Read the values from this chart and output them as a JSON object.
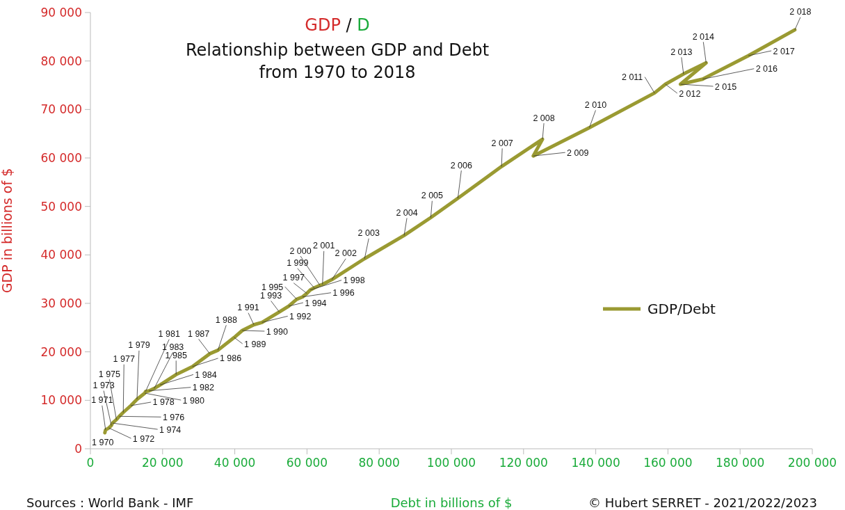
{
  "chart_data": {
    "type": "line",
    "title": "GDP / D",
    "subtitle": "Relationship between GDP and Debt from 1970 to 2018",
    "xlabel": "Debt in billions of $",
    "ylabel": "GDP in billions of $",
    "xlim": [
      0,
      200000
    ],
    "xticks": [
      {
        "value": 0,
        "label": "0"
      },
      {
        "value": 20000,
        "label": "20 000"
      },
      {
        "value": 40000,
        "label": "40 000"
      },
      {
        "value": 60000,
        "label": "60 000"
      },
      {
        "value": 80000,
        "label": "80 000"
      },
      {
        "value": 100000,
        "label": "100 000"
      },
      {
        "value": 120000,
        "label": "120 000"
      },
      {
        "value": 140000,
        "label": "140 000"
      },
      {
        "value": 160000,
        "label": "160 000"
      },
      {
        "value": 180000,
        "label": "180 000"
      },
      {
        "value": 200000,
        "label": "200 000"
      }
    ],
    "ylim": [
      0,
      90000
    ],
    "yticks": [
      {
        "value": 0,
        "label": "0"
      },
      {
        "value": 10000,
        "label": "10 000"
      },
      {
        "value": 20000,
        "label": "20 000"
      },
      {
        "value": 30000,
        "label": "30 000"
      },
      {
        "value": 40000,
        "label": "40 000"
      },
      {
        "value": 50000,
        "label": "50 000"
      },
      {
        "value": 60000,
        "label": "60 000"
      },
      {
        "value": 70000,
        "label": "70 000"
      },
      {
        "value": 80000,
        "label": "80 000"
      },
      {
        "value": 90000,
        "label": "90 000"
      }
    ],
    "grid": false,
    "legend": "right",
    "marker": "none",
    "line_style": "solid",
    "series": [
      {
        "name": "GDP/Debt",
        "color": "#9a9a32",
        "x": [
          4000,
          4200,
          5100,
          5800,
          6100,
          7200,
          8000,
          9100,
          11200,
          12900,
          15070,
          15270,
          16240,
          17660,
          19270,
          23740,
          28240,
          33070,
          35320,
          39830,
          42070,
          45280,
          47540,
          52330,
          54900,
          57160,
          58760,
          59960,
          60900,
          62000,
          63590,
          64300,
          66900,
          75960,
          86910,
          94290,
          101800,
          113900,
          125250,
          122690,
          138240,
          156290,
          159310,
          164320,
          170580,
          163480,
          169610,
          182300,
          195160
        ],
        "values": [
          3300,
          3900,
          4300,
          4800,
          5300,
          6000,
          6700,
          7500,
          8900,
          10200,
          11480,
          11810,
          11960,
          12440,
          13160,
          15310,
          16950,
          19610,
          20330,
          22960,
          24400,
          25590,
          26070,
          28220,
          29420,
          30850,
          31330,
          32050,
          32770,
          33200,
          33720,
          33900,
          34910,
          39220,
          44010,
          47690,
          51670,
          58230,
          63860,
          60410,
          66250,
          73400,
          75210,
          77320,
          79620,
          75210,
          76260,
          81100,
          86430
        ]
      }
    ],
    "annotations": [
      "Sources : World Bank - IMF",
      "© Hubert SERRET - 2021/2022/2023",
      {
        "text": "1 970",
        "x": 4000,
        "y": 3300
      },
      {
        "text": "1 971",
        "x": 4200,
        "y": 3900
      },
      {
        "text": "1 972",
        "x": 5100,
        "y": 4300
      },
      {
        "text": "1 973",
        "x": 5800,
        "y": 4800
      },
      {
        "text": "1 974",
        "x": 6100,
        "y": 5300
      },
      {
        "text": "1 975",
        "x": 7200,
        "y": 6000
      },
      {
        "text": "1 976",
        "x": 8000,
        "y": 6700
      },
      {
        "text": "1 977",
        "x": 9100,
        "y": 7500
      },
      {
        "text": "1 978",
        "x": 11200,
        "y": 8900
      },
      {
        "text": "1 979",
        "x": 12900,
        "y": 10200
      },
      {
        "text": "1 980",
        "x": 15070,
        "y": 11480
      },
      {
        "text": "1 981",
        "x": 15270,
        "y": 11810
      },
      {
        "text": "1 982",
        "x": 16240,
        "y": 11960
      },
      {
        "text": "1 983",
        "x": 17660,
        "y": 12440
      },
      {
        "text": "1 984",
        "x": 19270,
        "y": 13160
      },
      {
        "text": "1 985",
        "x": 23740,
        "y": 15310
      },
      {
        "text": "1 986",
        "x": 28240,
        "y": 16950
      },
      {
        "text": "1 987",
        "x": 33070,
        "y": 19610
      },
      {
        "text": "1 988",
        "x": 35320,
        "y": 20330
      },
      {
        "text": "1 989",
        "x": 39830,
        "y": 22960
      },
      {
        "text": "1 990",
        "x": 42070,
        "y": 24400
      },
      {
        "text": "1 991",
        "x": 45280,
        "y": 25590
      },
      {
        "text": "1 992",
        "x": 47540,
        "y": 26070
      },
      {
        "text": "1 993",
        "x": 52330,
        "y": 28220
      },
      {
        "text": "1 994",
        "x": 54900,
        "y": 29420
      },
      {
        "text": "1 995",
        "x": 57160,
        "y": 30850
      },
      {
        "text": "1 996",
        "x": 58760,
        "y": 31330
      },
      {
        "text": "1 997",
        "x": 59960,
        "y": 32050
      },
      {
        "text": "1 998",
        "x": 60900,
        "y": 32770
      },
      {
        "text": "1 999",
        "x": 62000,
        "y": 33200
      },
      {
        "text": "2 000",
        "x": 63590,
        "y": 33720
      },
      {
        "text": "2 001",
        "x": 64300,
        "y": 33900
      },
      {
        "text": "2 002",
        "x": 66900,
        "y": 34910
      },
      {
        "text": "2 003",
        "x": 75960,
        "y": 39220
      },
      {
        "text": "2 004",
        "x": 86910,
        "y": 44010
      },
      {
        "text": "2 005",
        "x": 94290,
        "y": 47690
      },
      {
        "text": "2 006",
        "x": 101800,
        "y": 51670
      },
      {
        "text": "2 007",
        "x": 113900,
        "y": 58230
      },
      {
        "text": "2 008",
        "x": 125250,
        "y": 63860
      },
      {
        "text": "2 009",
        "x": 122690,
        "y": 60410
      },
      {
        "text": "2 010",
        "x": 138240,
        "y": 66250
      },
      {
        "text": "2 011",
        "x": 156290,
        "y": 73400
      },
      {
        "text": "2 012",
        "x": 159310,
        "y": 75210
      },
      {
        "text": "2 013",
        "x": 164320,
        "y": 77320
      },
      {
        "text": "2 014",
        "x": 170580,
        "y": 79620
      },
      {
        "text": "2 015",
        "x": 163480,
        "y": 75210
      },
      {
        "text": "2 016",
        "x": 169610,
        "y": 76260
      },
      {
        "text": "2 017",
        "x": 182300,
        "y": 81100
      },
      {
        "text": "2 018",
        "x": 195160,
        "y": 86430
      }
    ]
  }
}
